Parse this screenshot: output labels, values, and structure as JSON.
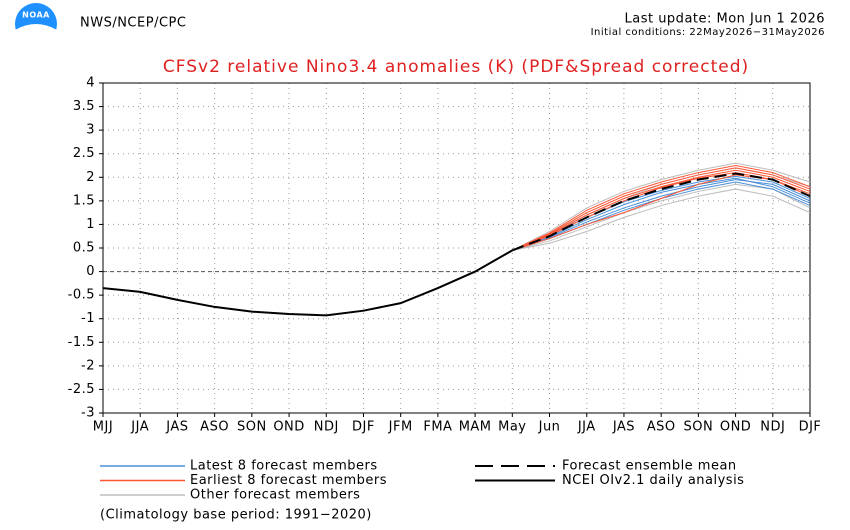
{
  "header": {
    "logo_text": "NOAA",
    "agency": "NWS/NCEP/CPC",
    "last_update": "Last update: Mon Jun 1 2026",
    "initial_conditions": "Initial conditions: 22May2026−31May2026"
  },
  "chart_data": {
    "type": "line",
    "title": "CFSv2 relative Nino3.4 anomalies (K) (PDF&Spread corrected)",
    "categories": [
      "MJJ",
      "JJA",
      "JAS",
      "ASO",
      "SON",
      "OND",
      "NDJ",
      "DJF",
      "JFM",
      "FMA",
      "MAM",
      "May",
      "Jun",
      "JJA",
      "JAS",
      "ASO",
      "SON",
      "OND",
      "NDJ",
      "DJF"
    ],
    "ylim": [
      -3,
      4
    ],
    "yticks": [
      -3,
      -2.5,
      -2,
      -1.5,
      -1,
      -0.5,
      0,
      0.5,
      1,
      1.5,
      2,
      2.5,
      3,
      3.5,
      4
    ],
    "grid": true,
    "zero_line": true,
    "series": [
      {
        "name": "Other forecast members",
        "color": "#bdbdbd",
        "members": [
          [
            null,
            null,
            null,
            null,
            null,
            null,
            null,
            null,
            null,
            null,
            null,
            0.45,
            0.6,
            0.85,
            1.15,
            1.4,
            1.6,
            1.75,
            1.6,
            1.25
          ],
          [
            null,
            null,
            null,
            null,
            null,
            null,
            null,
            null,
            null,
            null,
            null,
            0.45,
            0.85,
            1.35,
            1.7,
            1.95,
            2.15,
            2.3,
            2.15,
            1.9
          ],
          [
            null,
            null,
            null,
            null,
            null,
            null,
            null,
            null,
            null,
            null,
            null,
            0.45,
            0.65,
            0.95,
            1.25,
            1.5,
            1.7,
            1.85,
            1.75,
            1.35
          ],
          [
            null,
            null,
            null,
            null,
            null,
            null,
            null,
            null,
            null,
            null,
            null,
            0.45,
            0.8,
            1.2,
            1.55,
            1.85,
            2.05,
            2.2,
            2.05,
            1.8
          ]
        ]
      },
      {
        "name": "Latest 8 forecast members",
        "color": "#4a8fd8",
        "members": [
          [
            null,
            null,
            null,
            null,
            null,
            null,
            null,
            null,
            null,
            null,
            null,
            0.45,
            0.72,
            1.05,
            1.35,
            1.6,
            1.8,
            1.95,
            1.85,
            1.5
          ],
          [
            null,
            null,
            null,
            null,
            null,
            null,
            null,
            null,
            null,
            null,
            null,
            0.45,
            0.7,
            1.0,
            1.3,
            1.55,
            1.75,
            1.9,
            1.75,
            1.4
          ],
          [
            null,
            null,
            null,
            null,
            null,
            null,
            null,
            null,
            null,
            null,
            null,
            0.45,
            0.78,
            1.15,
            1.48,
            1.72,
            1.9,
            2.02,
            1.9,
            1.55
          ],
          [
            null,
            null,
            null,
            null,
            null,
            null,
            null,
            null,
            null,
            null,
            null,
            0.45,
            0.74,
            1.1,
            1.42,
            1.68,
            1.85,
            1.98,
            1.8,
            1.45
          ]
        ]
      },
      {
        "name": "Earliest 8 forecast members",
        "color": "#ff5533",
        "members": [
          [
            null,
            null,
            null,
            null,
            null,
            null,
            null,
            null,
            null,
            null,
            null,
            0.45,
            0.8,
            1.25,
            1.6,
            1.85,
            2.05,
            2.2,
            2.05,
            1.75
          ],
          [
            null,
            null,
            null,
            null,
            null,
            null,
            null,
            null,
            null,
            null,
            null,
            0.45,
            0.82,
            1.3,
            1.65,
            1.9,
            2.1,
            2.25,
            2.1,
            1.8
          ],
          [
            null,
            null,
            null,
            null,
            null,
            null,
            null,
            null,
            null,
            null,
            null,
            0.45,
            0.78,
            1.2,
            1.55,
            1.8,
            2.0,
            2.15,
            2.0,
            1.7
          ],
          [
            null,
            null,
            null,
            null,
            null,
            null,
            null,
            null,
            null,
            null,
            null,
            0.45,
            0.76,
            1.15,
            1.5,
            1.78,
            1.98,
            2.1,
            1.95,
            1.65
          ],
          [
            null,
            null,
            null,
            null,
            null,
            null,
            null,
            null,
            null,
            null,
            null,
            0.45,
            0.7,
            1.0,
            1.25,
            1.55,
            1.85,
            2.05,
            1.95,
            1.6
          ]
        ]
      },
      {
        "name": "Forecast ensemble mean",
        "color": "#000000",
        "dashed": true,
        "values": [
          null,
          null,
          null,
          null,
          null,
          null,
          null,
          null,
          null,
          null,
          null,
          0.45,
          0.75,
          1.15,
          1.5,
          1.75,
          1.95,
          2.08,
          1.95,
          1.6
        ]
      },
      {
        "name": "NCEI OIv2.1 daily analysis",
        "color": "#000000",
        "values": [
          -0.35,
          -0.43,
          -0.6,
          -0.75,
          -0.85,
          -0.9,
          -0.93,
          -0.83,
          -0.67,
          -0.35,
          0.0,
          0.45,
          null,
          null,
          null,
          null,
          null,
          null,
          null,
          null
        ]
      }
    ],
    "footnote": "(Climatology base period: 1991−2020)"
  }
}
